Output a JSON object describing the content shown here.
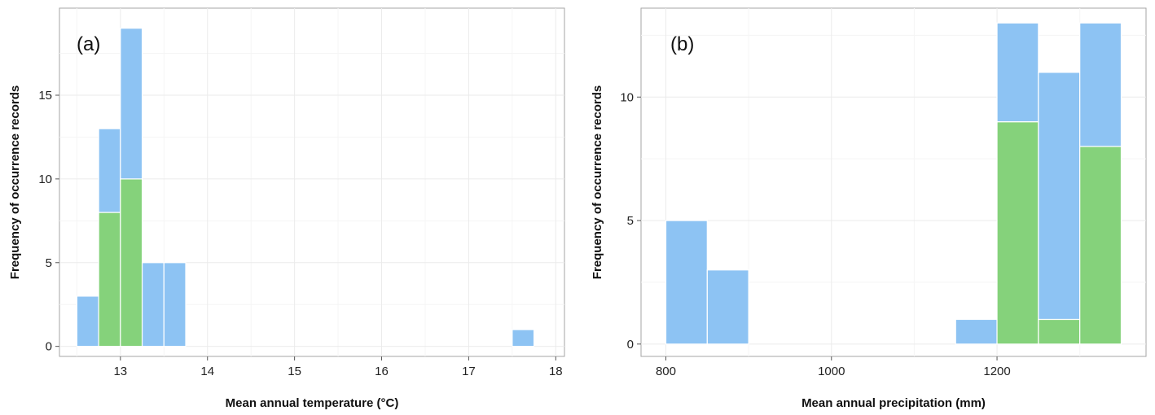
{
  "colors": {
    "blue": "#8dc3f3",
    "green": "#85d27b",
    "frame": "#a6a6a6",
    "grid": "#ebebeb"
  },
  "chart_data": [
    {
      "type": "bar",
      "stacked": true,
      "panel_label": "(a)",
      "xlabel": "Mean annual temperature (°C)",
      "ylabel": "Frequency of occurrence records",
      "xlim": [
        12.3,
        18.1
      ],
      "ylim": [
        -0.6,
        20.2
      ],
      "xticks": [
        13,
        14,
        15,
        16,
        17,
        18
      ],
      "yticks": [
        0,
        5,
        10,
        15
      ],
      "bin_width": 0.25,
      "grid": true,
      "bins": [
        {
          "x0": 12.5,
          "x1": 12.75,
          "green": 0,
          "blue": 3
        },
        {
          "x0": 12.75,
          "x1": 13.0,
          "green": 8,
          "blue": 5
        },
        {
          "x0": 13.0,
          "x1": 13.25,
          "green": 10,
          "blue": 9
        },
        {
          "x0": 13.25,
          "x1": 13.5,
          "green": 0,
          "blue": 5
        },
        {
          "x0": 13.5,
          "x1": 13.75,
          "green": 0,
          "blue": 5
        },
        {
          "x0": 17.5,
          "x1": 17.75,
          "green": 0,
          "blue": 1
        }
      ]
    },
    {
      "type": "bar",
      "stacked": true,
      "panel_label": "(b)",
      "xlabel": "Mean annual precipitation (mm)",
      "ylabel": "Frequency of occurrence records",
      "xlim": [
        770,
        1380
      ],
      "ylim": [
        -0.5,
        13.6
      ],
      "xticks": [
        800,
        1000,
        1200
      ],
      "yticks": [
        0,
        5,
        10
      ],
      "bin_width": 50,
      "grid": true,
      "bins": [
        {
          "x0": 800,
          "x1": 850,
          "green": 0,
          "blue": 5
        },
        {
          "x0": 850,
          "x1": 900,
          "green": 0,
          "blue": 3
        },
        {
          "x0": 1150,
          "x1": 1200,
          "green": 0,
          "blue": 1
        },
        {
          "x0": 1200,
          "x1": 1250,
          "green": 9,
          "blue": 4
        },
        {
          "x0": 1250,
          "x1": 1300,
          "green": 1,
          "blue": 10
        },
        {
          "x0": 1300,
          "x1": 1350,
          "green": 8,
          "blue": 5
        }
      ]
    }
  ]
}
